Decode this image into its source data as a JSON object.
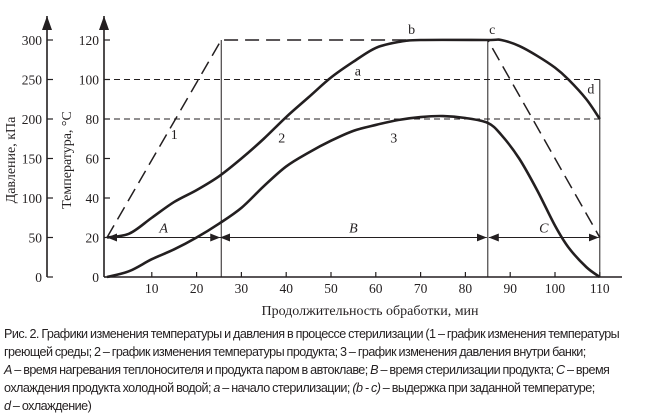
{
  "chart_data": {
    "type": "line",
    "xlabel": "Продолжительность обработки, мин",
    "ylabel_left_outer": "Давление, кПа",
    "ylabel_left_inner": "Температура, °С",
    "xlim": [
      0,
      110
    ],
    "ylim_temperature": [
      0,
      120
    ],
    "ylim_pressure": [
      0,
      300
    ],
    "x_ticks": [
      "10",
      "20",
      "30",
      "40",
      "50",
      "60",
      "70",
      "80",
      "90",
      "100",
      "110"
    ],
    "x_tick_values": [
      10,
      20,
      30,
      40,
      50,
      60,
      70,
      80,
      90,
      100,
      110
    ],
    "temperature_ticks": [
      "0",
      "20",
      "40",
      "60",
      "80",
      "100",
      "120"
    ],
    "temperature_tick_values": [
      0,
      20,
      40,
      60,
      80,
      100,
      120
    ],
    "pressure_ticks": [
      "0",
      "50",
      "100",
      "150",
      "200",
      "250",
      "300"
    ],
    "pressure_tick_values": [
      0,
      50,
      100,
      150,
      200,
      250,
      300
    ],
    "reference_lines_temperature": [
      100,
      80
    ],
    "phase_boundaries": [
      0,
      25,
      85,
      110
    ],
    "series": [
      {
        "name": "1",
        "style": "dashed",
        "points": [
          [
            0,
            20
          ],
          [
            25,
            120
          ],
          [
            85,
            120
          ],
          [
            110,
            20
          ]
        ]
      },
      {
        "name": "2",
        "style": "solid",
        "points": [
          [
            0,
            20
          ],
          [
            5,
            22
          ],
          [
            10,
            30
          ],
          [
            15,
            38
          ],
          [
            20,
            44
          ],
          [
            25,
            51
          ],
          [
            30,
            60
          ],
          [
            35,
            70
          ],
          [
            40,
            81
          ],
          [
            45,
            91
          ],
          [
            50,
            101
          ],
          [
            55,
            109
          ],
          [
            60,
            116
          ],
          [
            65,
            119
          ],
          [
            70,
            120
          ],
          [
            85,
            120
          ],
          [
            88,
            120
          ],
          [
            92,
            117
          ],
          [
            96,
            112
          ],
          [
            100,
            106
          ],
          [
            103,
            100
          ],
          [
            107,
            90
          ],
          [
            110,
            80
          ]
        ]
      },
      {
        "name": "3",
        "style": "solid",
        "points": [
          [
            0,
            0
          ],
          [
            5,
            3
          ],
          [
            10,
            9
          ],
          [
            15,
            14
          ],
          [
            20,
            20
          ],
          [
            25,
            27
          ],
          [
            30,
            35
          ],
          [
            35,
            46
          ],
          [
            40,
            56
          ],
          [
            45,
            63
          ],
          [
            50,
            69
          ],
          [
            55,
            74
          ],
          [
            60,
            77
          ],
          [
            65,
            79.5
          ],
          [
            70,
            81
          ],
          [
            75,
            81.5
          ],
          [
            80,
            80.5
          ],
          [
            85,
            78
          ],
          [
            88,
            72
          ],
          [
            92,
            60
          ],
          [
            96,
            44
          ],
          [
            100,
            26
          ],
          [
            103,
            15
          ],
          [
            107,
            5
          ],
          [
            110,
            0
          ]
        ]
      }
    ],
    "curve_labels": [
      {
        "text": "1",
        "x": 15,
        "y": 70
      },
      {
        "text": "2",
        "x": 39,
        "y": 68
      },
      {
        "text": "3",
        "x": 64,
        "y": 68
      },
      {
        "text": "a",
        "x": 56,
        "y": 102
      },
      {
        "text": "b",
        "x": 68,
        "y": 123
      },
      {
        "text": "c",
        "x": 86,
        "y": 123
      },
      {
        "text": "d",
        "x": 108,
        "y": 93
      }
    ],
    "intervals": [
      {
        "label": "A",
        "from": 0,
        "to": 25
      },
      {
        "label": "B",
        "from": 25,
        "to": 85
      },
      {
        "label": "C",
        "from": 85,
        "to": 110
      }
    ]
  },
  "caption": {
    "line1": "Рис. 2. Графики изменения температуры и давления в процессе стерилизации (1 – график изменения температуры",
    "line2": "греющей среды; 2 – график изменения температуры продукта; 3 – график изменения давления внутри банки;",
    "line3_A": "A",
    "line3_a": " – время нагревания теплоносителя и продукта паром в автоклаве; ",
    "line3_B": "B",
    "line3_b": " – время стерилизации продукта; ",
    "line3_C": "C",
    "line3_c": " – время",
    "line4_a": "охлаждения продукта холодной водой; ",
    "line4_ai": "a",
    "line4_b": " – начало стерилизации; ",
    "line4_bc": "(b - c)",
    "line4_c": " – выдержка при заданной температуре;",
    "line5_d": "d",
    "line5_rest": " – охлаждение)"
  }
}
